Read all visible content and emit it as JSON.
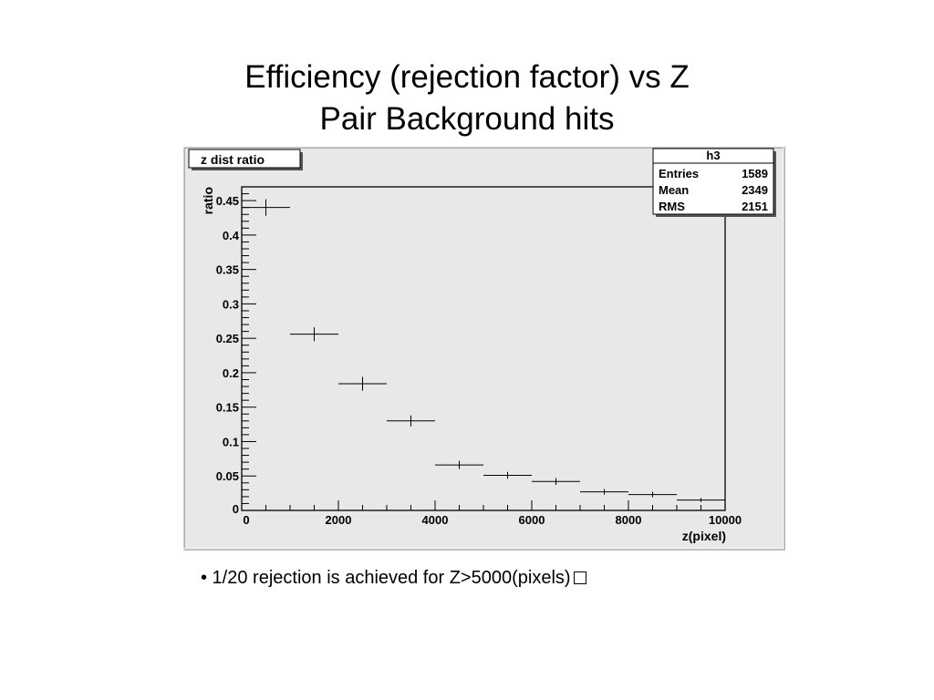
{
  "slide": {
    "title_line1": "Efficiency (rejection factor) vs Z",
    "title_line2": "Pair Background hits",
    "bullet": "• 1/20 rejection is achieved for Z>5000(pixels)"
  },
  "chart_data": {
    "type": "scatter",
    "title": "z dist ratio",
    "xlabel": "z(pixel)",
    "ylabel": "ratio",
    "xlim": [
      0,
      10000
    ],
    "ylim": [
      0,
      0.47
    ],
    "x_ticks": [
      0,
      2000,
      4000,
      6000,
      8000,
      10000
    ],
    "x_tick_labels": [
      "0",
      "2000",
      "4000",
      "6000",
      "8000",
      "10000"
    ],
    "y_ticks": [
      0,
      0.05,
      0.1,
      0.15,
      0.2,
      0.25,
      0.3,
      0.35,
      0.4,
      0.45
    ],
    "y_tick_labels": [
      "0",
      "0.05",
      "0.1",
      "0.15",
      "0.2",
      "0.25",
      "0.3",
      "0.35",
      "0.4",
      "0.45"
    ],
    "series": [
      {
        "points": [
          {
            "x": 500,
            "xerr": 500,
            "y": 0.44,
            "yerr": 0.012
          },
          {
            "x": 1500,
            "xerr": 500,
            "y": 0.256,
            "yerr": 0.01
          },
          {
            "x": 2500,
            "xerr": 500,
            "y": 0.184,
            "yerr": 0.01
          },
          {
            "x": 3500,
            "xerr": 500,
            "y": 0.13,
            "yerr": 0.008
          },
          {
            "x": 4500,
            "xerr": 500,
            "y": 0.066,
            "yerr": 0.006
          },
          {
            "x": 5500,
            "xerr": 500,
            "y": 0.051,
            "yerr": 0.005
          },
          {
            "x": 6500,
            "xerr": 500,
            "y": 0.042,
            "yerr": 0.005
          },
          {
            "x": 7500,
            "xerr": 500,
            "y": 0.027,
            "yerr": 0.004
          },
          {
            "x": 8500,
            "xerr": 500,
            "y": 0.023,
            "yerr": 0.004
          },
          {
            "x": 9500,
            "xerr": 500,
            "y": 0.015,
            "yerr": 0.003
          }
        ]
      }
    ],
    "stats_box": {
      "name": "h3",
      "rows": [
        {
          "label": "Entries",
          "value": "1589"
        },
        {
          "label": "Mean",
          "value": "2349"
        },
        {
          "label": "RMS",
          "value": "2151"
        }
      ]
    },
    "grid": false,
    "colors": {
      "canvas": "#e8e8e8",
      "frame": "#000000",
      "points": "#000000"
    }
  }
}
